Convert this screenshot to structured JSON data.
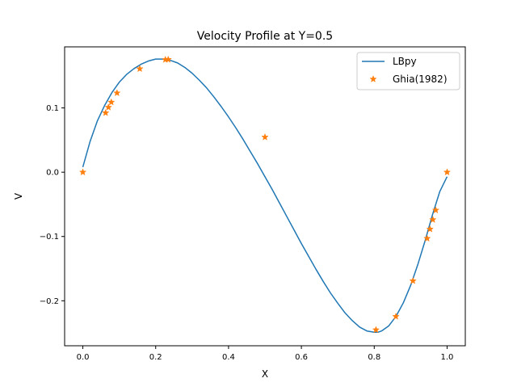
{
  "chart_data": {
    "type": "line",
    "title": "Velocity Profile at Y=0.5",
    "xlabel": "X",
    "ylabel": "V",
    "xlim": [
      -0.05,
      1.05
    ],
    "ylim": [
      -0.27,
      0.195
    ],
    "xticks": [
      0.0,
      0.2,
      0.4,
      0.6,
      0.8,
      1.0
    ],
    "xtick_labels": [
      "0.0",
      "0.2",
      "0.4",
      "0.6",
      "0.8",
      "1.0"
    ],
    "yticks": [
      -0.2,
      -0.1,
      0.0,
      0.1
    ],
    "ytick_labels": [
      "−0.2",
      "−0.1",
      "0.0",
      "0.1"
    ],
    "grid": false,
    "legend_position": "upper right",
    "series": [
      {
        "name": "LBpy",
        "kind": "line",
        "color": "#1f77b4",
        "x": [
          0.0,
          0.02,
          0.04,
          0.06,
          0.08,
          0.1,
          0.12,
          0.14,
          0.16,
          0.18,
          0.2,
          0.22,
          0.24,
          0.26,
          0.28,
          0.3,
          0.32,
          0.34,
          0.36,
          0.38,
          0.4,
          0.42,
          0.44,
          0.46,
          0.48,
          0.5,
          0.52,
          0.54,
          0.56,
          0.58,
          0.6,
          0.62,
          0.64,
          0.66,
          0.68,
          0.7,
          0.72,
          0.74,
          0.76,
          0.78,
          0.8,
          0.81,
          0.82,
          0.84,
          0.86,
          0.88,
          0.9,
          0.92,
          0.94,
          0.96,
          0.98,
          1.0
        ],
        "y": [
          0.008,
          0.048,
          0.08,
          0.104,
          0.124,
          0.14,
          0.152,
          0.161,
          0.168,
          0.173,
          0.176,
          0.176,
          0.174,
          0.17,
          0.163,
          0.154,
          0.143,
          0.131,
          0.117,
          0.102,
          0.086,
          0.069,
          0.051,
          0.032,
          0.013,
          -0.007,
          -0.027,
          -0.048,
          -0.069,
          -0.09,
          -0.111,
          -0.131,
          -0.151,
          -0.17,
          -0.188,
          -0.204,
          -0.219,
          -0.231,
          -0.241,
          -0.247,
          -0.249,
          -0.249,
          -0.247,
          -0.239,
          -0.224,
          -0.203,
          -0.176,
          -0.143,
          -0.106,
          -0.066,
          -0.03,
          -0.007
        ]
      },
      {
        "name": "Ghia(1982)",
        "kind": "scatter",
        "marker": "star",
        "color": "#ff7f0e",
        "x": [
          0.0,
          0.0625,
          0.0703,
          0.0781,
          0.0938,
          0.1563,
          0.2266,
          0.2344,
          0.5,
          0.8047,
          0.8594,
          0.9063,
          0.9453,
          0.9531,
          0.9609,
          0.9688,
          1.0
        ],
        "y": [
          0.0,
          0.0923,
          0.1009,
          0.1089,
          0.1232,
          0.1608,
          0.1751,
          0.1753,
          0.0545,
          -0.2453,
          -0.2245,
          -0.1691,
          -0.1031,
          -0.0886,
          -0.0739,
          -0.0591,
          0.0
        ]
      }
    ]
  }
}
